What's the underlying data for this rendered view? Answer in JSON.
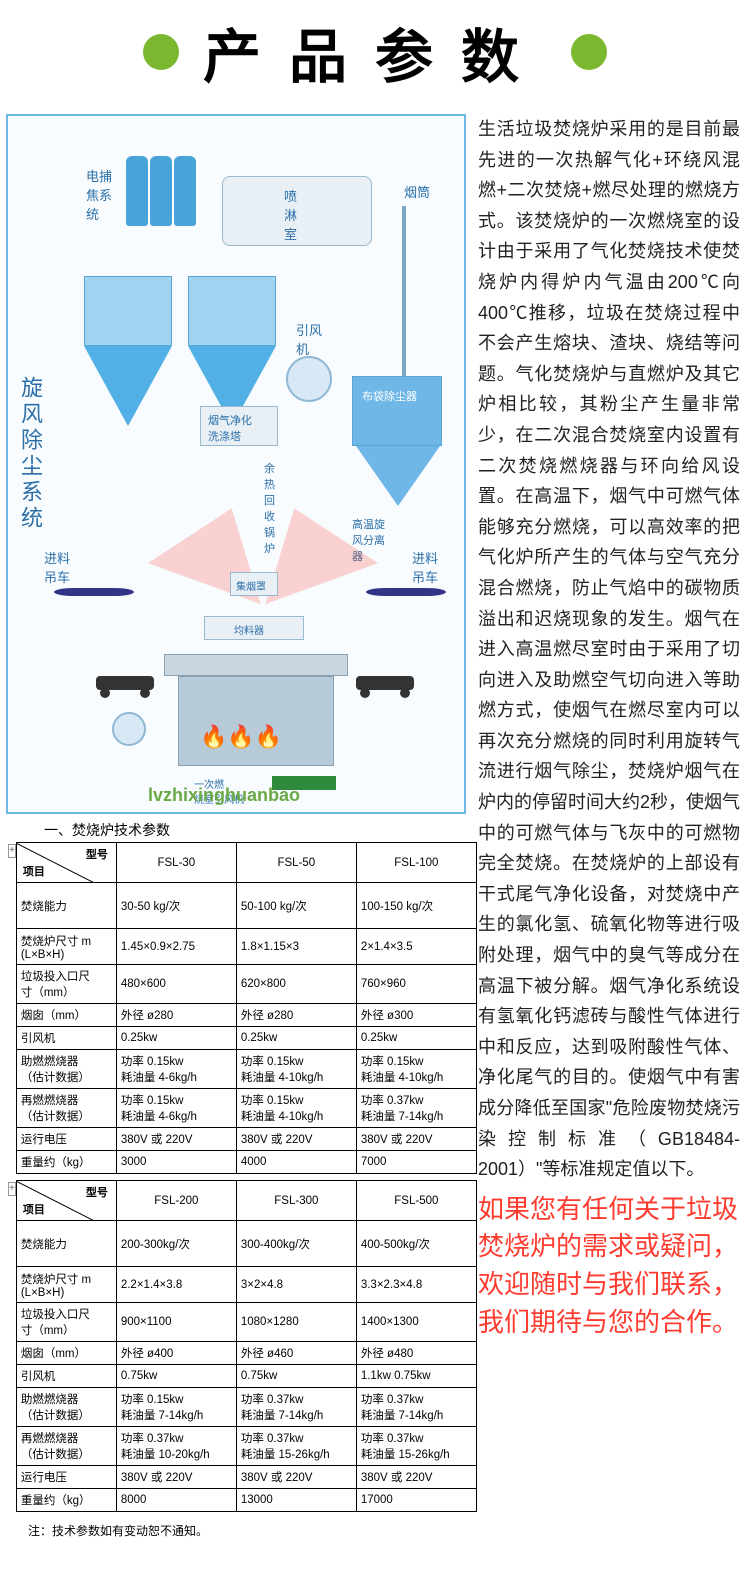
{
  "header": {
    "title": "产品参数"
  },
  "diagram": {
    "vlabel": "旋风除尘系统",
    "labels": {
      "electrostatic": "电捕\n焦系\n统",
      "spray_room": "喷\n淋\n室",
      "chimney": "烟筒",
      "fan": "引风\n机",
      "gas_purifier": "烟气净化\n洗涤塔",
      "bag_filter": "布袋除尘器",
      "heat_recovery": "余\n热\n回\n收\n锅\n炉",
      "cyclone": "高温旋\n风分离\n器",
      "feed_crane_l": "进料\n吊车",
      "feed_crane_r": "进料\n吊车",
      "ash_bin": "集烟罩",
      "distributor": "均料器",
      "primary_comb": "一次燃\n烧室引风机"
    },
    "watermark": "lvzhixinghuanbao"
  },
  "table_caption": "一、焚烧炉技术参数",
  "hdr_model": "型号",
  "hdr_item": "项目",
  "rows_labels": [
    "焚烧能力",
    "焚烧炉尺寸 m\n(L×B×H)",
    "垃圾投入口尺\n寸（mm）",
    "烟囱（mm）",
    "引风机",
    "助燃燃烧器\n（估计数据）",
    "再燃燃烧器\n（估计数据）",
    "运行电压",
    "重量约（kg）"
  ],
  "table1": {
    "models": [
      "FSL-30",
      "FSL-50",
      "FSL-100"
    ],
    "data": [
      [
        "30-50 kg/次",
        "50-100 kg/次",
        "100-150 kg/次"
      ],
      [
        "1.45×0.9×2.75",
        "1.8×1.15×3",
        "2×1.4×3.5"
      ],
      [
        "480×600",
        "620×800",
        "760×960"
      ],
      [
        "外径 ø280",
        "外径 ø280",
        "外径 ø300"
      ],
      [
        "0.25kw",
        "0.25kw",
        "0.25kw"
      ],
      [
        "功率 0.15kw\n耗油量 4-6kg/h",
        "功率 0.15kw\n耗油量 4-10kg/h",
        "功率 0.15kw\n耗油量 4-10kg/h"
      ],
      [
        "功率 0.15kw\n耗油量 4-6kg/h",
        "功率 0.15kw\n耗油量 4-10kg/h",
        "功率 0.37kw\n耗油量 7-14kg/h"
      ],
      [
        "380V 或 220V",
        "380V 或 220V",
        "380V 或 220V"
      ],
      [
        "3000",
        "4000",
        "7000"
      ]
    ]
  },
  "table2": {
    "models": [
      "FSL-200",
      "FSL-300",
      "FSL-500"
    ],
    "data": [
      [
        "200-300kg/次",
        "300-400kg/次",
        "400-500kg/次"
      ],
      [
        "2.2×1.4×3.8",
        "3×2×4.8",
        "3.3×2.3×4.8"
      ],
      [
        "900×1100",
        "1080×1280",
        "1400×1300"
      ],
      [
        "外径 ø400",
        "外径 ø460",
        "外径 ø480"
      ],
      [
        "0.75kw",
        "0.75kw",
        "1.1kw   0.75kw"
      ],
      [
        "功率 0.15kw\n耗油量 7-14kg/h",
        "功率 0.37kw\n耗油量 7-14kg/h",
        "功率 0.37kw\n耗油量 7-14kg/h"
      ],
      [
        "功率 0.37kw\n耗油量 10-20kg/h",
        "功率 0.37kw\n耗油量 15-26kg/h",
        "功率 0.37kw\n耗油量 15-26kg/h"
      ],
      [
        "380V 或 220V",
        "380V 或 220V",
        "380V 或 220V"
      ],
      [
        "8000",
        "13000",
        "17000"
      ]
    ]
  },
  "note": "注：技术参数如有变动恕不通知。",
  "description": "生活垃圾焚烧炉采用的是目前最先进的一次热解气化+环绕风混燃+二次焚烧+燃尽处理的燃烧方式。该焚烧炉的一次燃烧室的设计由于采用了气化焚烧技术使焚烧炉内得炉内气温由200℃向400℃推移，垃圾在焚烧过程中不会产生熔块、渣块、烧结等问题。气化焚烧炉与直燃炉及其它炉相比较，其粉尘产生量非常少，在二次混合焚烧室内设置有二次焚烧燃烧器与环向给风设置。在高温下，烟气中可燃气体能够充分燃烧，可以高效率的把气化炉所产生的气体与空气充分混合燃烧，防止气焰中的碳物质溢出和迟烧现象的发生。烟气在进入高温燃尽室时由于采用了切向进入及助燃空气切向进入等助燃方式，使烟气在燃尽室内可以再次充分燃烧的同时利用旋转气流进行烟气除尘，焚烧炉烟气在炉内的停留时间大约2秒，使烟气中的可燃气体与飞灰中的可燃物完全焚烧。在焚烧炉的上部设有干式尾气净化设备，对焚烧中产生的氯化氢、硫氧化物等进行吸附处理，烟气中的臭气等成分在高温下被分解。烟气净化系统设有氢氧化钙滤砖与酸性气体进行中和反应，达到吸附酸性气体、净化尾气的目的。使烟气中有害成分降低至国家\"危险废物焚烧污染控制标准（GB18484-2001）\"等标准规定值以下。",
  "contact": "如果您有任何关于垃圾焚烧炉的需求或疑问，欢迎随时与我们联系，我们期待与您的合作。"
}
